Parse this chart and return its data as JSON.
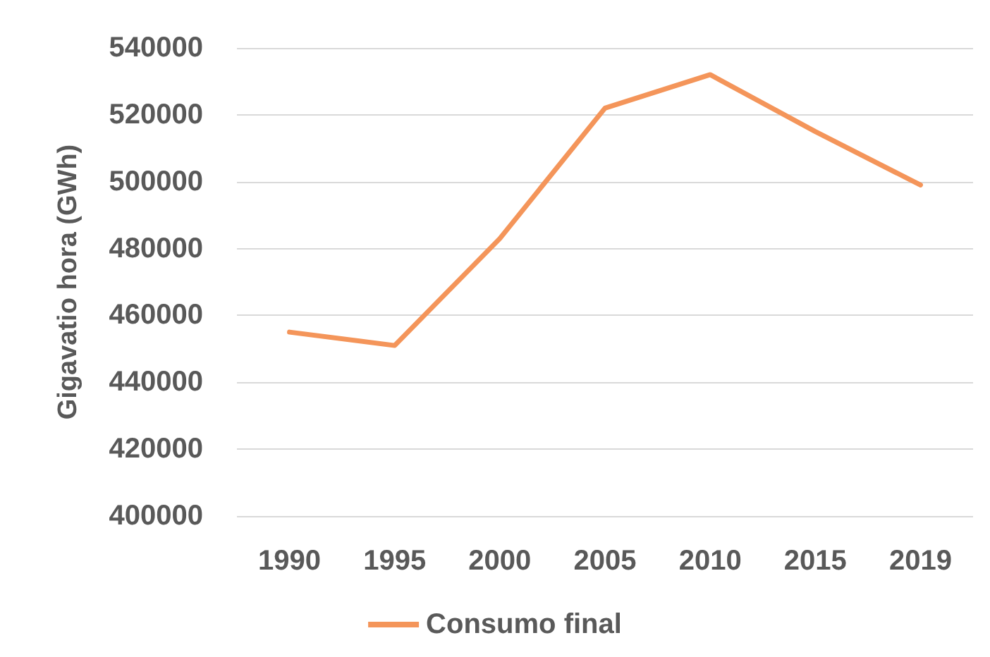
{
  "chart_data": {
    "type": "line",
    "ylabel": "Gigavatio hora (GWh)",
    "categories": [
      "1990",
      "1995",
      "2000",
      "2005",
      "2010",
      "2015",
      "2019"
    ],
    "series": [
      {
        "name": "Consumo final",
        "color": "#f4955a",
        "values": [
          455000,
          451000,
          483000,
          522000,
          532000,
          515000,
          499000
        ]
      }
    ],
    "ylim": [
      400000,
      540000
    ],
    "yticks": [
      400000,
      420000,
      440000,
      460000,
      480000,
      500000,
      520000,
      540000
    ],
    "grid": "y",
    "legend": "bottom",
    "marker": "none"
  }
}
